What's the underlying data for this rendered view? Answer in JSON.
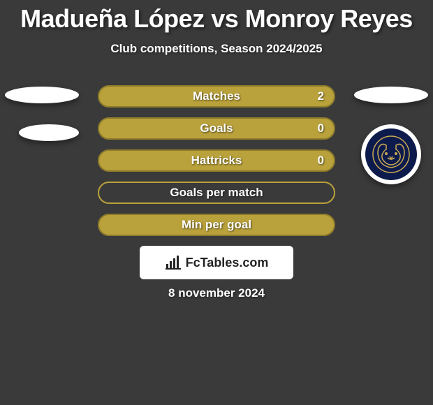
{
  "title": "Madueña López vs Monroy Reyes",
  "subtitle": "Club competitions, Season 2024/2025",
  "date": "8 november 2024",
  "logo_text": "FcTables.com",
  "rows": [
    {
      "label": "Matches",
      "value": "2",
      "fill": "#b9a13b",
      "border": "#8f7c2b"
    },
    {
      "label": "Goals",
      "value": "0",
      "fill": "#b9a13b",
      "border": "#8f7c2b"
    },
    {
      "label": "Hattricks",
      "value": "0",
      "fill": "#b9a13b",
      "border": "#8f7c2b"
    },
    {
      "label": "Goals per match",
      "value": "",
      "fill": "transparent",
      "border": "#b9a13b"
    },
    {
      "label": "Min per goal",
      "value": "",
      "fill": "#b9a13b",
      "border": "#8f7c2b"
    }
  ],
  "badge": {
    "outline_color": "#c9a952",
    "background": "#0d1b4c"
  }
}
